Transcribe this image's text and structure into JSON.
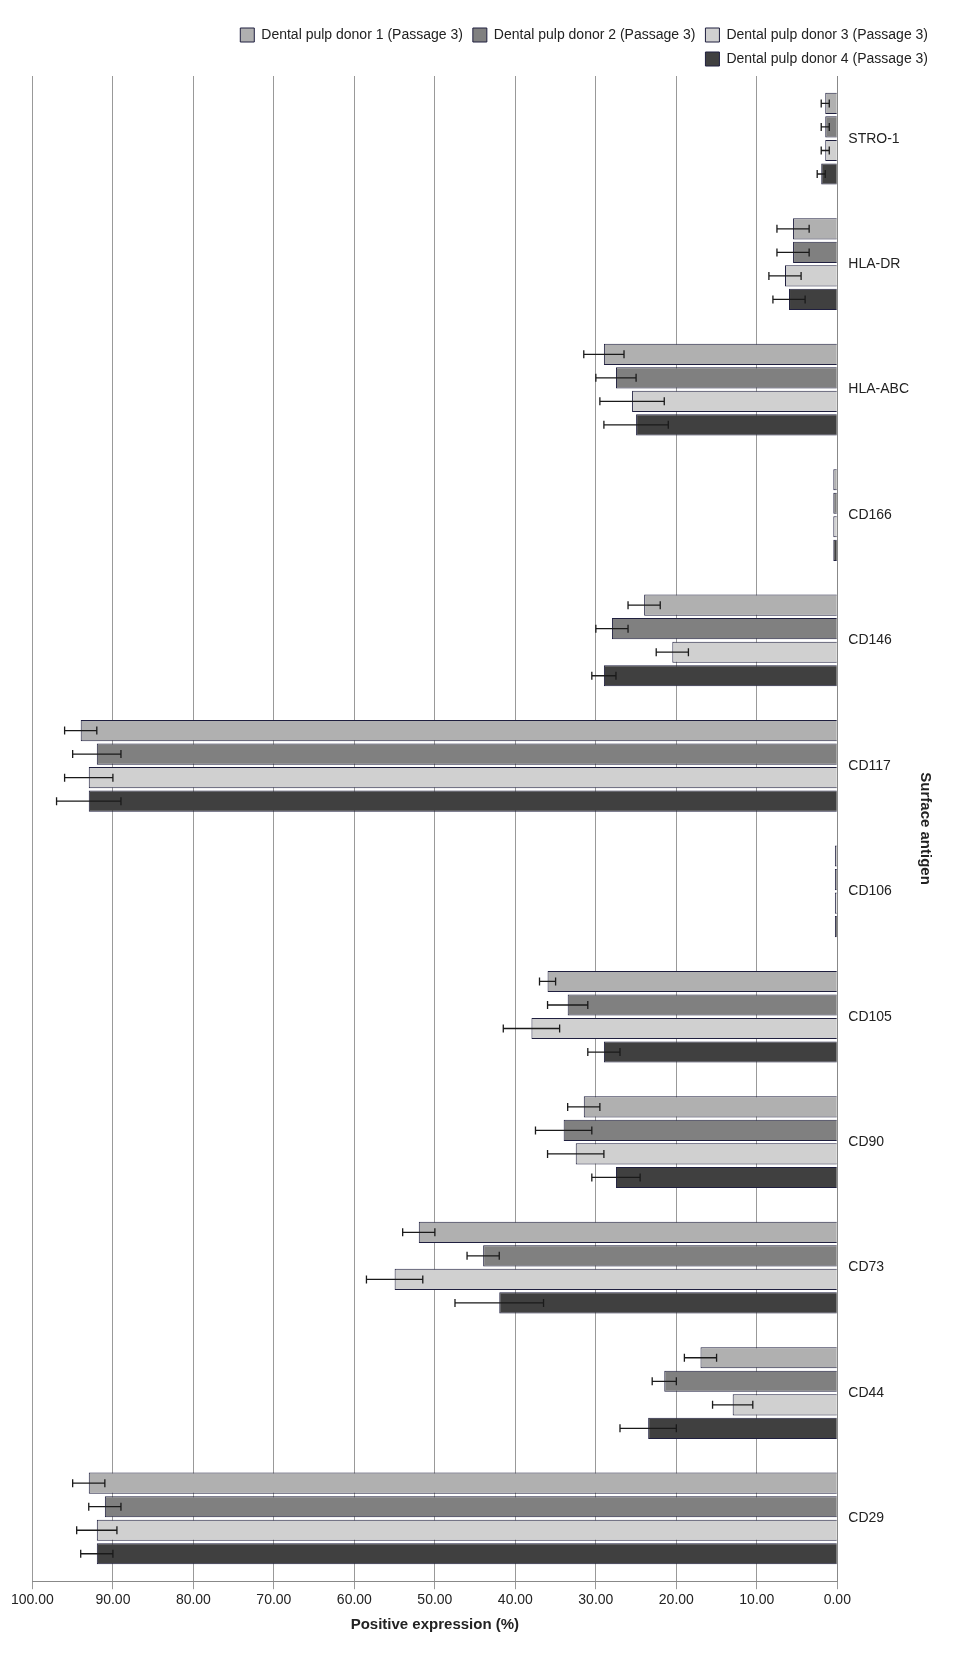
{
  "chart_data": {
    "type": "bar",
    "orientation": "horizontal",
    "xlabel": "Positive expression (%)",
    "ylabel": "Surface antigen",
    "categories": [
      "STRO-1",
      "HLA-DR",
      "HLA-ABC",
      "CD166",
      "CD146",
      "CD117",
      "CD106",
      "CD105",
      "CD90",
      "CD73",
      "CD44",
      "CD29"
    ],
    "series": [
      {
        "name": "Dental pulp donor 1 (Passage 3)",
        "color": "#b0b0b0",
        "values": [
          1.5,
          5.5,
          29,
          0.5,
          24,
          94,
          0.3,
          36,
          31.5,
          52,
          17,
          93
        ],
        "errors": [
          0.5,
          2,
          2.5,
          null,
          2,
          2,
          null,
          1,
          2,
          2,
          2,
          2
        ]
      },
      {
        "name": "Dental pulp donor 2 (Passage 3)",
        "color": "#808080",
        "values": [
          1.5,
          5.5,
          27.5,
          0.5,
          28,
          92,
          0.3,
          33.5,
          34,
          44,
          21.5,
          91
        ],
        "errors": [
          0.5,
          2,
          2.5,
          null,
          2,
          3,
          null,
          2.5,
          3.5,
          2,
          1.5,
          2
        ]
      },
      {
        "name": "Dental pulp donor 3 (Passage 3)",
        "color": "#d0d0d0",
        "values": [
          1.5,
          6.5,
          25.5,
          0.5,
          20.5,
          93,
          0.3,
          38,
          32.5,
          55,
          13,
          92
        ],
        "errors": [
          0.5,
          2,
          4,
          null,
          2,
          3,
          null,
          3.5,
          3.5,
          3.5,
          2.5,
          2.5
        ]
      },
      {
        "name": "Dental pulp donor 4 (Passage 3)",
        "color": "#404040",
        "values": [
          2,
          6,
          25,
          0.5,
          29,
          93,
          0.3,
          29,
          27.5,
          42,
          23.5,
          92
        ],
        "errors": [
          0.5,
          2,
          4,
          null,
          1.5,
          4,
          null,
          2,
          3,
          5.5,
          3.5,
          2
        ]
      }
    ],
    "xlim": [
      100,
      0
    ],
    "xticks": [
      {
        "value": 100,
        "label": "100.00"
      },
      {
        "value": 90,
        "label": "90.00"
      },
      {
        "value": 80,
        "label": "80.00"
      },
      {
        "value": 70,
        "label": "70.00"
      },
      {
        "value": 60,
        "label": "60.00"
      },
      {
        "value": 50,
        "label": "50.00"
      },
      {
        "value": 40,
        "label": "40.00"
      },
      {
        "value": 30,
        "label": "30.00"
      },
      {
        "value": 20,
        "label": "20.00"
      },
      {
        "value": 10,
        "label": "10.00"
      },
      {
        "value": 0,
        "label": "0.00"
      }
    ],
    "grid": "x",
    "legend": "top right"
  }
}
